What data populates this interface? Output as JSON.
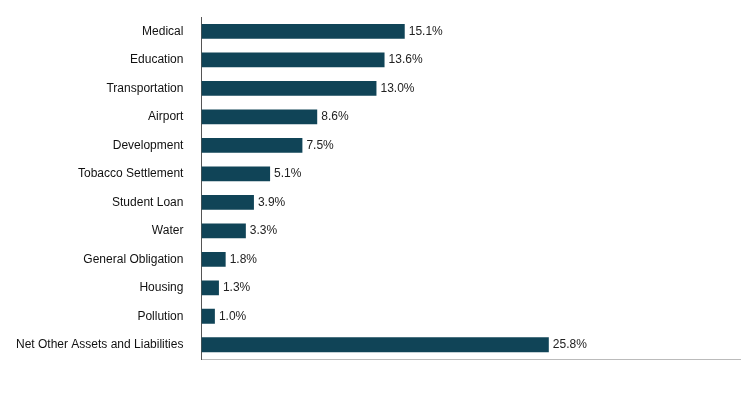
{
  "chart_data": {
    "type": "bar",
    "orientation": "horizontal",
    "categories": [
      "Medical",
      "Education",
      "Transportation",
      "Airport",
      "Development",
      "Tobacco Settlement",
      "Student Loan",
      "Water",
      "General Obligation",
      "Housing",
      "Pollution",
      "Net Other Assets and Liabilities"
    ],
    "values": [
      15.1,
      13.6,
      13.0,
      8.6,
      7.5,
      5.1,
      3.9,
      3.3,
      1.8,
      1.3,
      1.0,
      25.8
    ],
    "value_labels": [
      "15.1%",
      "13.6%",
      "13.0%",
      "8.6%",
      "7.5%",
      "5.1%",
      "3.9%",
      "3.3%",
      "1.8%",
      "1.3%",
      "1.0%",
      "25.8%"
    ],
    "color": "#104457",
    "xlim": [
      0,
      40
    ],
    "xticks": [],
    "grid": false,
    "data_labels": true,
    "tick_labels": "y"
  }
}
